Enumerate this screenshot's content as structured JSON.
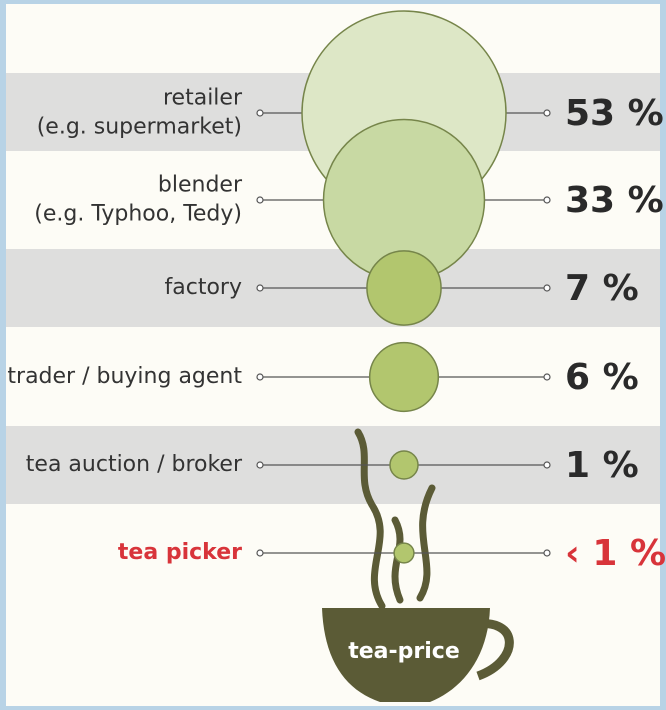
{
  "chart_data": {
    "type": "bubble",
    "categories": [
      [
        "retailer",
        "(e.g. supermarket)"
      ],
      [
        "blender",
        "(e.g. Typhoo, Tedy)"
      ],
      [
        "factory"
      ],
      [
        "trader / buying agent"
      ],
      [
        "tea auction / broker"
      ],
      [
        "tea picker"
      ]
    ],
    "values": [
      53,
      33,
      7,
      6,
      1,
      0.5
    ],
    "value_labels": [
      "53 %",
      "33 %",
      "7 %",
      "6 %",
      "1 %",
      "‹ 1 %"
    ],
    "colors": [
      "#dde7c6",
      "#c8d9a3",
      "#b2c66e",
      "#b2c66e",
      "#b2c66e",
      "#b2c66e"
    ],
    "highlight_index": 5,
    "highlight_color": "#d8343a",
    "cup_label": "tea-price"
  }
}
